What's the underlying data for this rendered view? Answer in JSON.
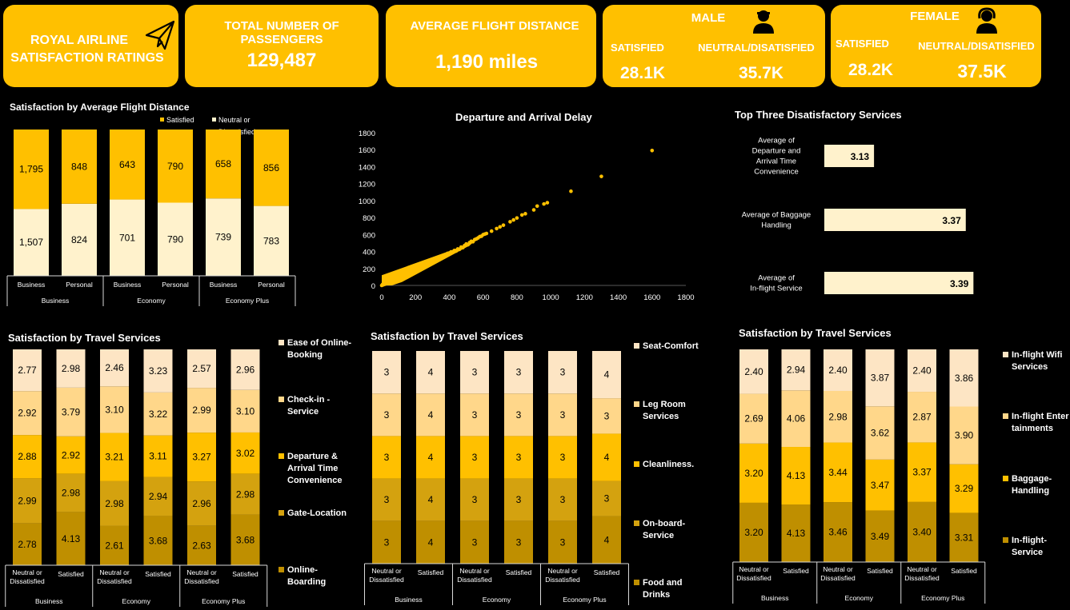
{
  "header": {
    "title_line1": "ROYAL AIRLINE",
    "title_line2": "SATISFACTION RATINGS",
    "passengers_label": "TOTAL NUMBER OF PASSENGERS",
    "passengers_value": "129,487",
    "distance_label": "AVERAGE FLIGHT DISTANCE",
    "distance_value": "1,190 miles",
    "male": {
      "title": "MALE",
      "satisfied_label": "SATISFIED",
      "satisfied_value": "28.1K",
      "neutral_label": "NEUTRAL/DISATISFIED",
      "neutral_value": "35.7K"
    },
    "female": {
      "title": "FEMALE",
      "satisfied_label": "SATISFIED",
      "satisfied_value": "28.2K",
      "neutral_label": "NEUTRAL/DISATISFIED",
      "neutral_value": "37.5K"
    }
  },
  "colors": {
    "accent": "#ffc000",
    "background": "#000000",
    "cream": "#fff2cc"
  },
  "chart_data": [
    {
      "id": "distance",
      "type": "bar",
      "stacked": "100%",
      "title": "Satisfaction by Average Flight Distance",
      "legend_position": "top",
      "categories": [
        "Business",
        "Personal",
        "Business",
        "Personal",
        "Business",
        "Personal"
      ],
      "groups": [
        "Business",
        "Economy",
        "Economy Plus"
      ],
      "series": [
        {
          "name": "Neutral or Dissatisfied",
          "color": "#fff2cc",
          "values": [
            1507,
            824,
            701,
            790,
            739,
            783
          ]
        },
        {
          "name": "Satisfied",
          "color": "#ffc000",
          "values": [
            1795,
            848,
            643,
            790,
            658,
            856
          ]
        }
      ]
    },
    {
      "id": "delay",
      "type": "scatter",
      "title": "Departure and Arrival Delay",
      "xlim": [
        0,
        1800
      ],
      "ylim": [
        0,
        1800
      ],
      "xticks": [
        "0",
        "200",
        "400",
        "600",
        "800",
        "1000",
        "1200",
        "1400",
        "1600",
        "1800"
      ],
      "yticks": [
        "0",
        "200",
        "400",
        "600",
        "800",
        "1000",
        "1200",
        "1400",
        "1600",
        "1800"
      ],
      "grid": false,
      "color": "#ffc000",
      "points": [
        [
          0,
          0
        ],
        [
          5,
          12
        ],
        [
          10,
          8
        ],
        [
          12,
          30
        ],
        [
          20,
          15
        ],
        [
          25,
          40
        ],
        [
          30,
          22
        ],
        [
          40,
          55
        ],
        [
          45,
          30
        ],
        [
          50,
          70
        ],
        [
          60,
          48
        ],
        [
          65,
          85
        ],
        [
          70,
          60
        ],
        [
          80,
          95
        ],
        [
          90,
          75
        ],
        [
          95,
          110
        ],
        [
          100,
          88
        ],
        [
          110,
          125
        ],
        [
          120,
          105
        ],
        [
          125,
          140
        ],
        [
          130,
          118
        ],
        [
          140,
          150
        ],
        [
          150,
          132
        ],
        [
          155,
          170
        ],
        [
          160,
          148
        ],
        [
          170,
          180
        ],
        [
          180,
          165
        ],
        [
          185,
          200
        ],
        [
          190,
          178
        ],
        [
          200,
          210
        ],
        [
          210,
          192
        ],
        [
          215,
          230
        ],
        [
          220,
          205
        ],
        [
          230,
          240
        ],
        [
          240,
          222
        ],
        [
          245,
          255
        ],
        [
          250,
          238
        ],
        [
          260,
          268
        ],
        [
          270,
          252
        ],
        [
          275,
          285
        ],
        [
          280,
          265
        ],
        [
          290,
          295
        ],
        [
          300,
          280
        ],
        [
          310,
          310
        ],
        [
          320,
          298
        ],
        [
          330,
          325
        ],
        [
          340,
          318
        ],
        [
          350,
          342
        ],
        [
          360,
          335
        ],
        [
          370,
          360
        ],
        [
          380,
          355
        ],
        [
          390,
          378
        ],
        [
          400,
          372
        ],
        [
          410,
          395
        ],
        [
          420,
          390
        ],
        [
          430,
          412
        ],
        [
          440,
          405
        ],
        [
          450,
          430
        ],
        [
          460,
          425
        ],
        [
          470,
          452
        ],
        [
          480,
          445
        ],
        [
          490,
          470
        ],
        [
          500,
          488
        ],
        [
          510,
          480
        ],
        [
          520,
          505
        ],
        [
          530,
          520
        ],
        [
          540,
          515
        ],
        [
          550,
          540
        ],
        [
          560,
          548
        ],
        [
          570,
          560
        ],
        [
          580,
          575
        ],
        [
          590,
          580
        ],
        [
          600,
          598
        ],
        [
          610,
          605
        ],
        [
          620,
          612
        ],
        [
          650,
          640
        ],
        [
          680,
          670
        ],
        [
          700,
          690
        ],
        [
          720,
          710
        ],
        [
          760,
          750
        ],
        [
          780,
          772
        ],
        [
          800,
          795
        ],
        [
          830,
          830
        ],
        [
          850,
          845
        ],
        [
          900,
          890
        ],
        [
          920,
          935
        ],
        [
          960,
          960
        ],
        [
          980,
          975
        ],
        [
          1120,
          1110
        ],
        [
          1300,
          1285
        ],
        [
          1600,
          1590
        ]
      ]
    },
    {
      "id": "top3",
      "type": "bar",
      "orientation": "horizontal",
      "title": "Top Three Disatisfactory Services",
      "categories": [
        "Average of Departure and Arrival Time Convenience",
        "Average of Baggage Handling",
        "Average of In-flight Service"
      ],
      "values": [
        3.13,
        3.37,
        3.39
      ],
      "labels": [
        "3.13",
        "3.37",
        "3.39"
      ],
      "xlim": [
        3.0,
        3.45
      ],
      "color": "#fff2cc"
    },
    {
      "id": "services1",
      "type": "bar",
      "stacked": "100%",
      "title": "Satisfaction by Travel Services",
      "legend_position": "right",
      "categories": [
        "Neutral or Dissatisfied",
        "Satisfied",
        "Neutral or Dissatisfied",
        "Satisfied",
        "Neutral or Dissatisfied",
        "Satisfied"
      ],
      "groups": [
        "Business",
        "Economy",
        "Economy Plus"
      ],
      "series": [
        {
          "name": "Online-Boarding",
          "color": "#bf8f00",
          "labels": [
            "2.78",
            "4.13",
            "2.61",
            "3.68",
            "2.63",
            "3.68"
          ],
          "values": [
            2.78,
            4.13,
            2.61,
            3.68,
            2.63,
            3.68
          ]
        },
        {
          "name": "Gate-Location",
          "color": "#d4a20f",
          "labels": [
            "2.99",
            "2.98",
            "2.98",
            "2.94",
            "2.96",
            "2.98"
          ],
          "values": [
            2.99,
            2.98,
            2.98,
            2.94,
            2.96,
            2.98
          ]
        },
        {
          "name": "Departure & Arrival Time Convenience",
          "color": "#ffc000",
          "labels": [
            "2.88",
            "2.92",
            "3.21",
            "3.11",
            "3.27",
            "3.02"
          ],
          "values": [
            2.88,
            2.92,
            3.21,
            3.11,
            3.27,
            3.02
          ]
        },
        {
          "name": "Check-in - Service",
          "color": "#ffd78a",
          "labels": [
            "2.92",
            "3.79",
            "3.10",
            "3.22",
            "2.99",
            "3.10"
          ],
          "values": [
            2.92,
            3.79,
            3.1,
            3.22,
            2.99,
            3.1
          ]
        },
        {
          "name": "Ease of Online-Booking",
          "color": "#fde5c4",
          "labels": [
            "2.77",
            "2.98",
            "2.46",
            "3.23",
            "2.57",
            "2.96"
          ],
          "values": [
            2.77,
            2.98,
            2.46,
            3.23,
            2.57,
            2.96
          ]
        }
      ]
    },
    {
      "id": "services2",
      "type": "bar",
      "stacked": "100%",
      "title": "Satisfaction by Travel Services",
      "legend_position": "right",
      "categories": [
        "Neutral or Dissatisfied",
        "Satisfied",
        "Neutral or Dissatisfied",
        "Satisfied",
        "Neutral or Dissatisfied",
        "Satisfied"
      ],
      "groups": [
        "Business",
        "Economy",
        "Economy Plus"
      ],
      "series": [
        {
          "name": "Food and Drinks",
          "color": "#bf8f00",
          "labels": [
            "3",
            "4",
            "3",
            "3",
            "3",
            "4"
          ],
          "values": [
            3,
            4,
            3,
            3,
            3,
            4
          ]
        },
        {
          "name": "On-board-Service",
          "color": "#d4a20f",
          "labels": [
            "3",
            "4",
            "3",
            "3",
            "3",
            "3"
          ],
          "values": [
            3,
            4,
            3,
            3,
            3,
            3
          ]
        },
        {
          "name": "Cleanliness.",
          "color": "#ffc000",
          "labels": [
            "3",
            "4",
            "3",
            "3",
            "3",
            "4"
          ],
          "values": [
            3,
            4,
            3,
            3,
            3,
            4
          ]
        },
        {
          "name": "Leg Room Services",
          "color": "#ffd78a",
          "labels": [
            "3",
            "4",
            "3",
            "3",
            "3",
            "3"
          ],
          "values": [
            3,
            4,
            3,
            3,
            3,
            3
          ]
        },
        {
          "name": "Seat-Comfort",
          "color": "#fde5c4",
          "labels": [
            "3",
            "4",
            "3",
            "3",
            "3",
            "4"
          ],
          "values": [
            3,
            4,
            3,
            3,
            3,
            4
          ]
        }
      ]
    },
    {
      "id": "services3",
      "type": "bar",
      "stacked": "100%",
      "title": "Satisfaction by Travel Services",
      "legend_position": "right",
      "categories": [
        "Neutral or Dissatisfied",
        "Satisfied",
        "Neutral or Dissatisfied",
        "Satisfied",
        "Neutral or Dissatisfied",
        "Satisfied"
      ],
      "groups": [
        "Business",
        "Economy",
        "Economy Plus"
      ],
      "series": [
        {
          "name": "In-flight-Service",
          "color": "#bf8f00",
          "labels": [
            "3.20",
            "4.13",
            "3.46",
            "3.49",
            "3.40",
            "3.31"
          ],
          "values": [
            3.2,
            4.13,
            3.46,
            3.49,
            3.4,
            3.31
          ]
        },
        {
          "name": "Baggage-Handling",
          "color": "#ffc000",
          "labels": [
            "3.20",
            "4.13",
            "3.44",
            "3.47",
            "3.37",
            "3.29"
          ],
          "values": [
            3.2,
            4.13,
            3.44,
            3.47,
            3.37,
            3.29
          ]
        },
        {
          "name": "In-flight Entertainments",
          "color": "#ffd78a",
          "labels": [
            "2.69",
            "4.06",
            "2.98",
            "3.62",
            "2.87",
            "3.90"
          ],
          "values": [
            2.69,
            4.06,
            2.98,
            3.62,
            2.87,
            3.9
          ]
        },
        {
          "name": "In-flight Wifi Services",
          "color": "#fde5c4",
          "labels": [
            "2.40",
            "2.94",
            "2.40",
            "3.87",
            "2.40",
            "3.86"
          ],
          "values": [
            2.4,
            2.94,
            2.4,
            3.87,
            2.4,
            3.86
          ]
        }
      ]
    }
  ]
}
